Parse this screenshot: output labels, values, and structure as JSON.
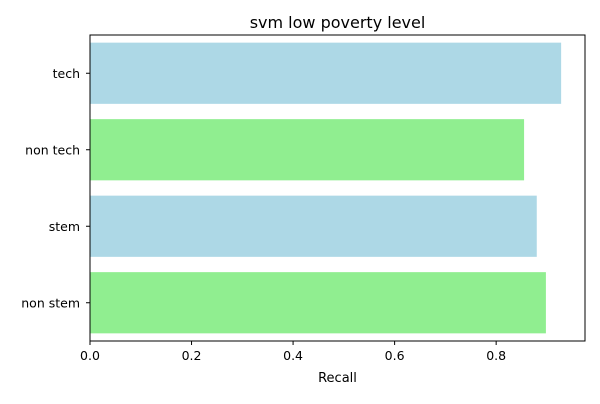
{
  "chart_data": {
    "type": "bar",
    "orientation": "horizontal",
    "title": "svm low poverty level",
    "xlabel": "Recall",
    "ylabel": "",
    "categories": [
      "tech",
      "non tech",
      "stem",
      "non stem"
    ],
    "values": [
      0.928,
      0.855,
      0.88,
      0.898
    ],
    "bar_colors": [
      "#add8e6",
      "#90ee90",
      "#add8e6",
      "#90ee90"
    ],
    "xlim": [
      0.0,
      0.975
    ],
    "xticks": [
      0.0,
      0.2,
      0.4,
      0.6,
      0.8
    ],
    "xtick_labels": [
      "0.0",
      "0.2",
      "0.4",
      "0.6",
      "0.8"
    ],
    "grid": false,
    "legend": "none"
  }
}
